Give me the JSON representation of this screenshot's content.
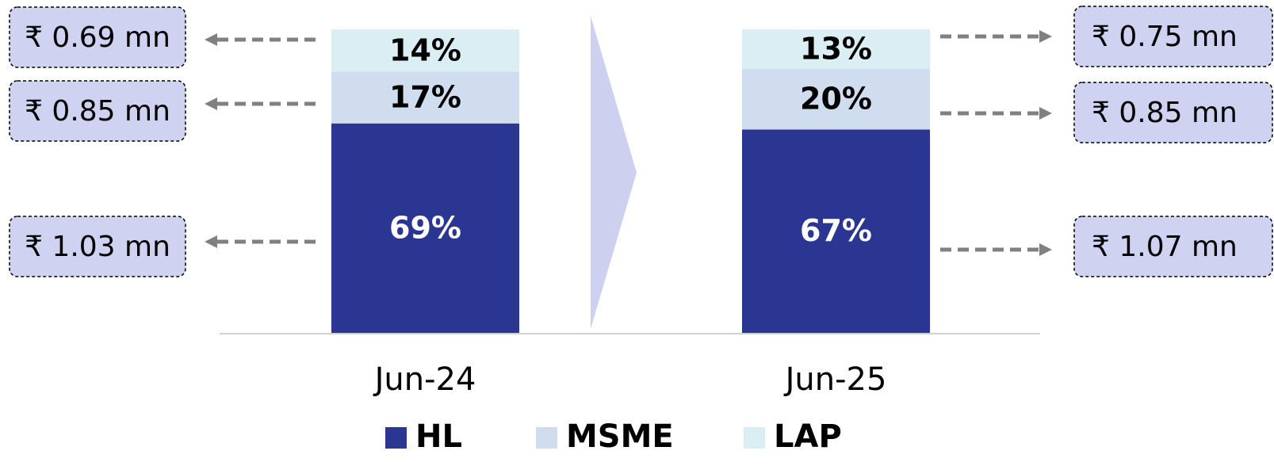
{
  "chart_data": {
    "type": "stacked_bar",
    "categories": [
      "Jun-24",
      "Jun-25"
    ],
    "ylim": [
      0,
      100
    ],
    "series": [
      {
        "name": "HL",
        "color": "#2a3692",
        "values": [
          69,
          67
        ],
        "value_labels": [
          "69%",
          "67%"
        ],
        "label_color": "#ffffff",
        "ticket_size_labels": [
          "₹ 1.03 mn",
          "₹ 1.07 mn"
        ]
      },
      {
        "name": "MSME",
        "color": "#d0ddef",
        "values": [
          17,
          20
        ],
        "value_labels": [
          "17%",
          "20%"
        ],
        "label_color": "#000000",
        "ticket_size_labels": [
          "₹ 0.85 mn",
          "₹ 0.85 mn"
        ]
      },
      {
        "name": "LAP",
        "color": "#daeef4",
        "values": [
          14,
          13
        ],
        "value_labels": [
          "14%",
          "13%"
        ],
        "label_color": "#000000",
        "ticket_size_labels": [
          "₹ 0.69 mn",
          "₹ 0.75 mn"
        ]
      }
    ]
  }
}
